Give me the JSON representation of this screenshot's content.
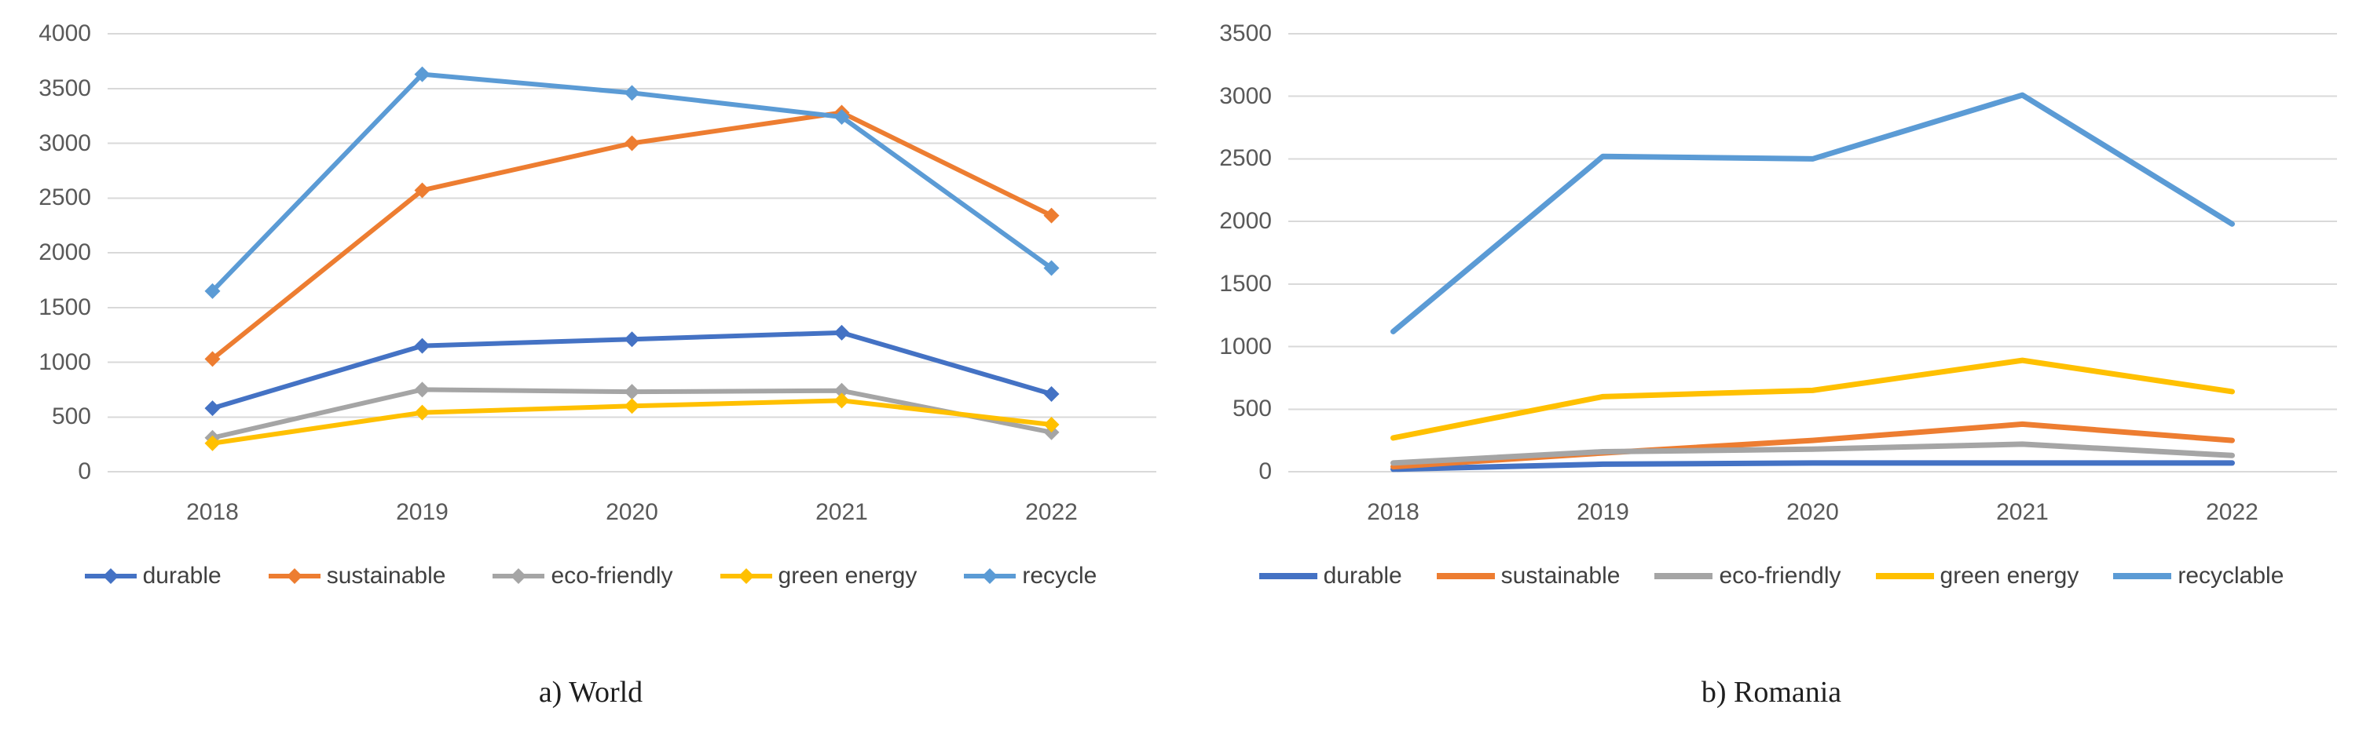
{
  "figure": {
    "background": "#ffffff",
    "grid_color": "#d9d9d9",
    "axis_text_color": "#595959",
    "legend_text_color": "#404040",
    "caption_color": "#1f1f1f"
  },
  "chart_data": [
    {
      "type": "line",
      "title": "a) World",
      "xlabel": "",
      "ylabel": "",
      "categories": [
        "2018",
        "2019",
        "2020",
        "2021",
        "2022"
      ],
      "ylim": [
        0,
        4000
      ],
      "y_ticks": [
        0,
        500,
        1000,
        1500,
        2000,
        2500,
        3000,
        3500,
        4000
      ],
      "grid": true,
      "legend_position": "bottom",
      "markers": "diamond",
      "series": [
        {
          "name": "durable",
          "color": "#4472C4",
          "values": [
            580,
            1150,
            1210,
            1270,
            710
          ]
        },
        {
          "name": "sustainable",
          "color": "#ED7D31",
          "values": [
            1030,
            2570,
            3000,
            3280,
            2340
          ]
        },
        {
          "name": "eco-friendly",
          "color": "#A5A5A5",
          "values": [
            310,
            750,
            730,
            740,
            360
          ]
        },
        {
          "name": "green energy",
          "color": "#FFC000",
          "values": [
            260,
            540,
            600,
            650,
            430
          ]
        },
        {
          "name": "recycle",
          "color": "#5B9BD5",
          "values": [
            1650,
            3630,
            3460,
            3240,
            1860
          ]
        }
      ]
    },
    {
      "type": "line",
      "title": "b) Romania",
      "xlabel": "",
      "ylabel": "",
      "categories": [
        "2018",
        "2019",
        "2020",
        "2021",
        "2022"
      ],
      "ylim": [
        0,
        3500
      ],
      "y_ticks": [
        0,
        500,
        1000,
        1500,
        2000,
        2500,
        3000,
        3500
      ],
      "grid": true,
      "legend_position": "bottom",
      "markers": "none",
      "series": [
        {
          "name": "durable",
          "color": "#4472C4",
          "values": [
            20,
            60,
            70,
            70,
            70
          ]
        },
        {
          "name": "sustainable",
          "color": "#ED7D31",
          "values": [
            40,
            150,
            250,
            380,
            250
          ]
        },
        {
          "name": "eco-friendly",
          "color": "#A5A5A5",
          "values": [
            70,
            160,
            180,
            220,
            130
          ]
        },
        {
          "name": "green energy",
          "color": "#FFC000",
          "values": [
            270,
            600,
            650,
            890,
            640
          ]
        },
        {
          "name": "recyclable",
          "color": "#5B9BD5",
          "values": [
            1120,
            2520,
            2500,
            3010,
            1980
          ]
        }
      ]
    }
  ]
}
